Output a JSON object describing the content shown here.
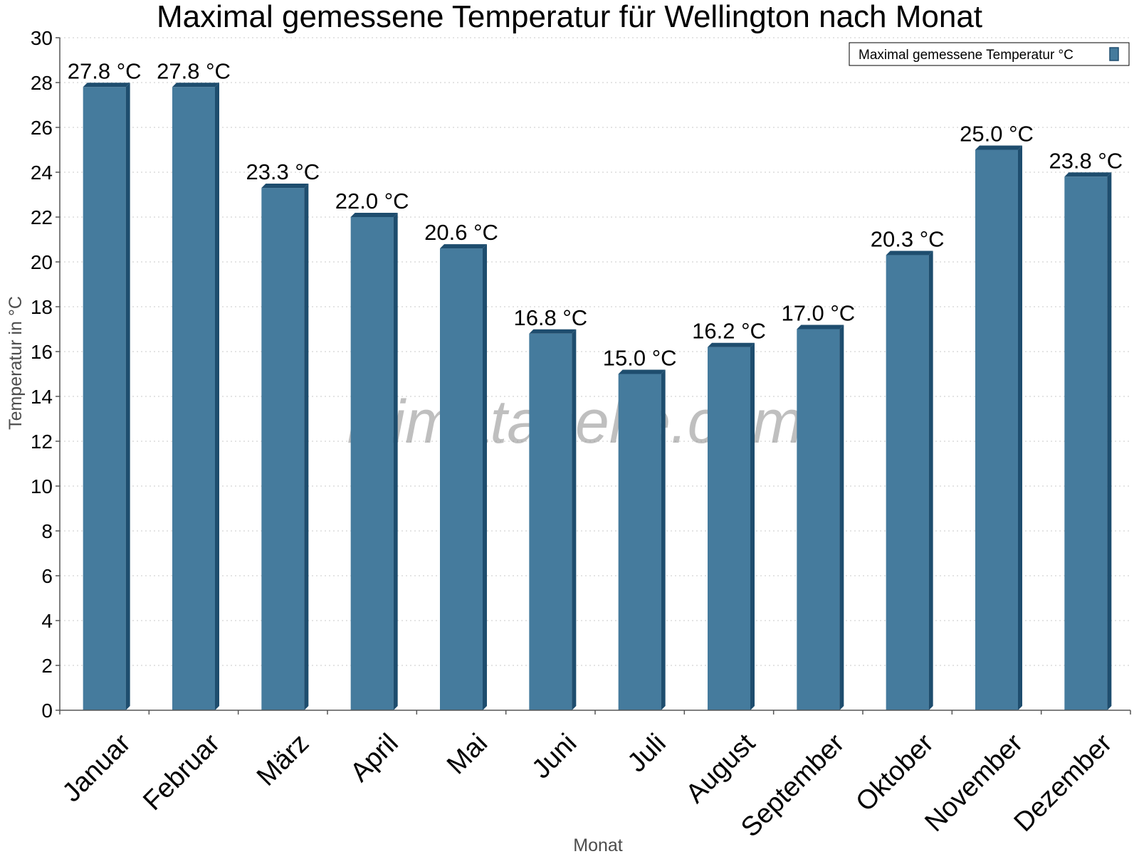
{
  "chart_data": {
    "type": "bar",
    "title": "Maximal gemessene Temperatur für Wellington nach Monat",
    "xlabel": "Monat",
    "ylabel": "Temperatur in °C",
    "ylim": [
      0,
      30
    ],
    "ytick_step": 2,
    "grid": true,
    "legend_position": "top-right",
    "categories": [
      "Januar",
      "Februar",
      "März",
      "April",
      "Mai",
      "Juni",
      "Juli",
      "August",
      "September",
      "Oktober",
      "November",
      "Dezember"
    ],
    "series": [
      {
        "name": "Maximal gemessene Temperatur °C",
        "values": [
          27.8,
          27.8,
          23.3,
          22.0,
          20.6,
          16.8,
          15.0,
          16.2,
          17.0,
          20.3,
          25.0,
          23.8
        ],
        "data_labels": [
          "27.8 °C",
          "27.8 °C",
          "23.3 °C",
          "22.0 °C",
          "20.6 °C",
          "16.8 °C",
          "15.0 °C",
          "16.2 °C",
          "17.0 °C",
          "20.3 °C",
          "25.0 °C",
          "23.8 °C"
        ],
        "color": "#457b9d",
        "edge_color": "#1e4d6e"
      }
    ]
  },
  "watermark": "klimatabelle.com"
}
